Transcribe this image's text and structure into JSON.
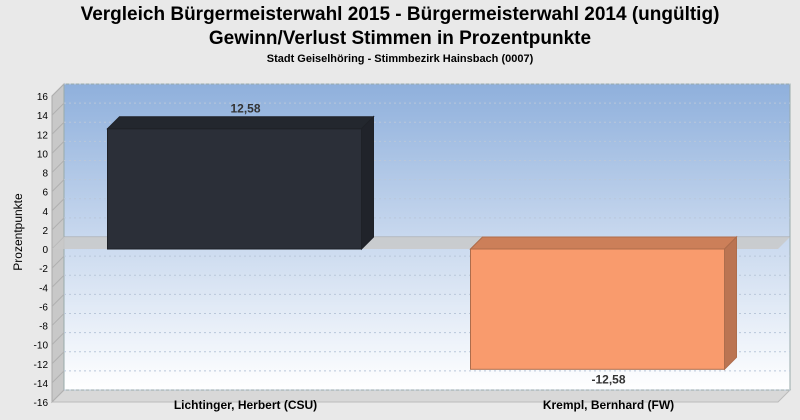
{
  "chart_data": {
    "type": "bar",
    "title": "Vergleich Bürgermeisterwahl 2015 - Bürgermeisterwahl 2014 (ungültig)",
    "title2": "Gewinn/Verlust Stimmen in Prozentpunkte",
    "subtitle": "Stadt Geiselhöring - Stimmbezirk Hainsbach (0007)",
    "ylabel": "Prozentpunkte",
    "xlabel": "",
    "categories": [
      "Lichtinger, Herbert (CSU)",
      "Krempl, Bernhard (FW)"
    ],
    "values": [
      12.58,
      -12.58
    ],
    "value_labels": [
      "12,58",
      "-12,58"
    ],
    "colors": [
      "#2b2f38",
      "#f99b6d"
    ],
    "ylim": [
      -16,
      16
    ],
    "yticks": [
      16,
      14,
      12,
      10,
      8,
      6,
      4,
      2,
      0,
      -2,
      -4,
      -6,
      -8,
      -10,
      -12,
      -14,
      -16
    ],
    "grid": true,
    "legend": "none"
  }
}
